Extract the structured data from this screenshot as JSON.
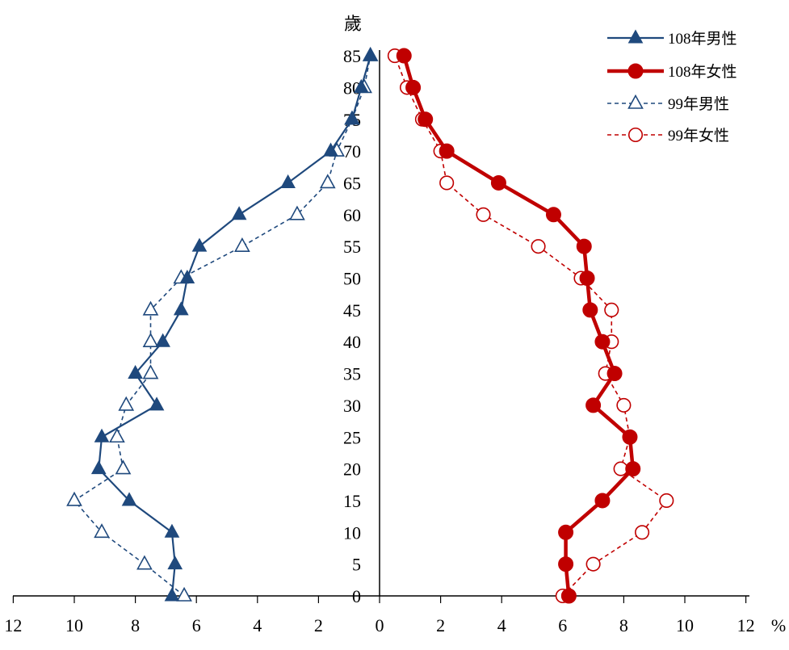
{
  "chart_data": {
    "type": "line",
    "title": "",
    "xlabel": "",
    "ylabel": "歲",
    "x_unit": "%",
    "x_ticks": [
      12,
      10,
      8,
      6,
      4,
      2,
      0,
      2,
      4,
      6,
      8,
      10,
      12
    ],
    "x_range": [
      -12,
      12
    ],
    "ages": [
      0,
      5,
      10,
      15,
      20,
      25,
      30,
      35,
      40,
      45,
      50,
      55,
      60,
      65,
      70,
      75,
      80,
      85
    ],
    "y_range": [
      0,
      85
    ],
    "legend_position": "top-right",
    "grid": false,
    "series": [
      {
        "name": "108年男性",
        "side": "left",
        "color": "#1F497D",
        "marker": "triangle-filled",
        "line": "solid",
        "values": [
          6.8,
          6.7,
          6.8,
          8.2,
          9.2,
          9.1,
          7.3,
          8.0,
          7.1,
          6.5,
          6.3,
          5.9,
          4.6,
          3.0,
          1.6,
          0.9,
          0.6,
          0.3
        ]
      },
      {
        "name": "108年女性",
        "side": "right",
        "color": "#C00000",
        "marker": "circle-filled",
        "line": "solid-thick",
        "values": [
          6.2,
          6.1,
          6.1,
          7.3,
          8.3,
          8.2,
          7.0,
          7.7,
          7.3,
          6.9,
          6.8,
          6.7,
          5.7,
          3.9,
          2.2,
          1.5,
          1.1,
          0.8
        ]
      },
      {
        "name": "99年男性",
        "side": "left",
        "color": "#1F497D",
        "marker": "triangle-open",
        "line": "dashed",
        "values": [
          6.4,
          7.7,
          9.1,
          10.0,
          8.4,
          8.6,
          8.3,
          7.5,
          7.5,
          7.5,
          6.5,
          4.5,
          2.7,
          1.7,
          1.4,
          0.9,
          0.5,
          0.3
        ]
      },
      {
        "name": "99年女性",
        "side": "right",
        "color": "#C00000",
        "marker": "circle-open",
        "line": "dashed",
        "values": [
          6.0,
          7.0,
          8.6,
          9.4,
          7.9,
          8.2,
          8.0,
          7.4,
          7.6,
          7.6,
          6.6,
          5.2,
          3.4,
          2.2,
          2.0,
          1.4,
          0.9,
          0.5
        ]
      }
    ]
  }
}
